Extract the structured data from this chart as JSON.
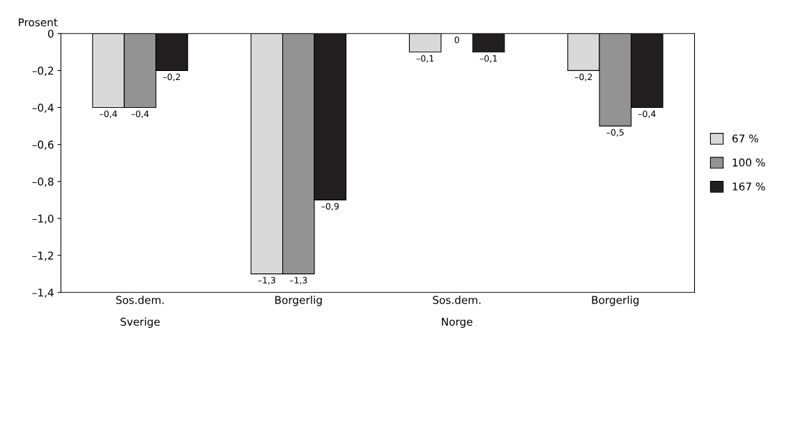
{
  "chart_data": {
    "type": "bar",
    "ylabel": "Prosent",
    "categories": [
      "Sos.dem.",
      "Borgerlig",
      "Sos.dem.",
      "Borgerlig"
    ],
    "annotations": [
      "Sverige",
      "Norge"
    ],
    "series": [
      {
        "name": "67 %",
        "color": "#d9d9d9",
        "values": [
          -0.4,
          -1.3,
          -0.1,
          -0.2
        ],
        "value_labels": [
          "–0,4",
          "–1,3",
          "–0,1",
          "–0,2"
        ]
      },
      {
        "name": "100 %",
        "color": "#939393",
        "values": [
          -0.4,
          -1.3,
          0,
          -0.5
        ],
        "value_labels": [
          "–0,4",
          "–1,3",
          "0",
          "–0,5"
        ]
      },
      {
        "name": "167 %",
        "color": "#231f20",
        "values": [
          -0.2,
          -0.9,
          -0.1,
          -0.4
        ],
        "value_labels": [
          "–0,2",
          "–0,9",
          "–0,1",
          "–0,4"
        ]
      }
    ],
    "ylim": [
      -1.4,
      0
    ],
    "yticks": [
      {
        "value": -1.4,
        "label": "–1,4"
      },
      {
        "value": -1.2,
        "label": "–1,2"
      },
      {
        "value": -1.0,
        "label": "–1,0"
      },
      {
        "value": -0.8,
        "label": "–0,8"
      },
      {
        "value": -0.6,
        "label": "–0,6"
      },
      {
        "value": -0.4,
        "label": "–0,4"
      },
      {
        "value": -0.2,
        "label": "–0,2"
      },
      0
    ],
    "grid": false,
    "legend": "right"
  }
}
